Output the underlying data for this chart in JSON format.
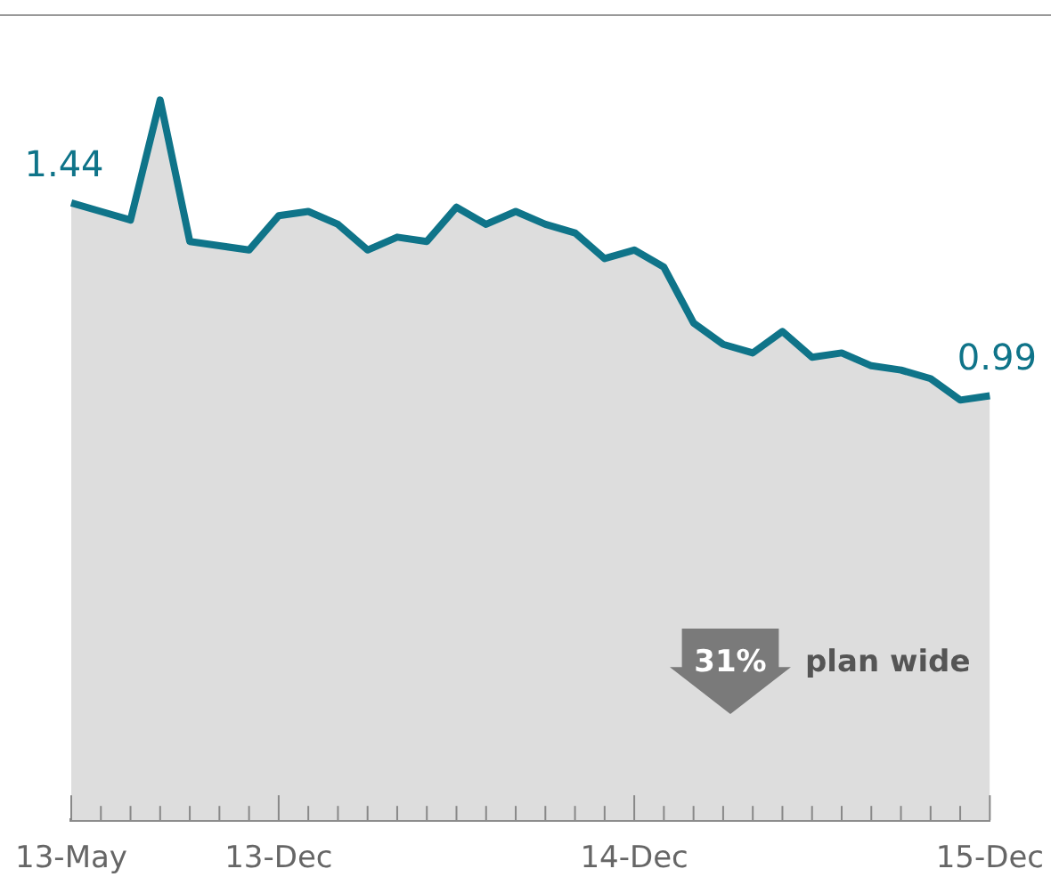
{
  "chart_data": {
    "type": "area",
    "categories": [
      "13-May",
      null,
      null,
      null,
      null,
      null,
      null,
      "13-Dec",
      null,
      null,
      null,
      null,
      null,
      null,
      null,
      null,
      null,
      null,
      null,
      "14-Dec",
      null,
      null,
      null,
      null,
      null,
      null,
      null,
      null,
      null,
      null,
      null,
      "15-Dec"
    ],
    "series": [
      {
        "color": "#0f7489",
        "values": [
          1.44,
          1.42,
          1.4,
          1.68,
          1.35,
          1.34,
          1.33,
          1.41,
          1.42,
          1.39,
          1.33,
          1.36,
          1.35,
          1.43,
          1.39,
          1.42,
          1.39,
          1.37,
          1.31,
          1.33,
          1.29,
          1.16,
          1.11,
          1.09,
          1.14,
          1.08,
          1.09,
          1.06,
          1.05,
          1.03,
          0.98,
          0.99
        ],
        "value_labels": [
          "1.44",
          null,
          null,
          null,
          null,
          null,
          null,
          null,
          null,
          null,
          null,
          null,
          null,
          null,
          null,
          null,
          null,
          null,
          null,
          null,
          null,
          null,
          null,
          null,
          null,
          null,
          null,
          null,
          null,
          null,
          null,
          "0.99"
        ]
      }
    ],
    "ylim": [
      0,
      1.88
    ],
    "tick_labels": "x",
    "annotations": [
      "31%",
      "plan wide"
    ]
  }
}
